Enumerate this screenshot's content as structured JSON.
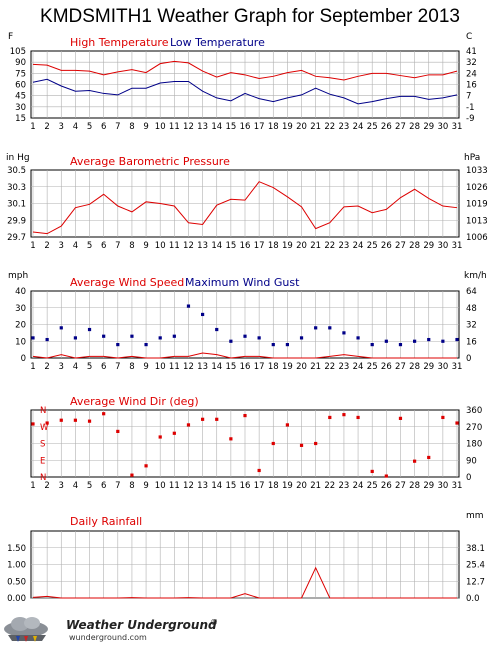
{
  "title": "KMDSMITH1 Weather Graph for September 2013",
  "colors": {
    "red": "#dd0000",
    "blue": "#000088",
    "grid": "#b0b0b0"
  },
  "branding": {
    "name": "Weather Underground",
    "mark": "®",
    "site": "wunderground.com"
  },
  "chart_data": [
    {
      "type": "line",
      "title": "",
      "left_unit": "F",
      "right_unit": "C",
      "x": [
        1,
        2,
        3,
        4,
        5,
        6,
        7,
        8,
        9,
        10,
        11,
        12,
        13,
        14,
        15,
        16,
        17,
        18,
        19,
        20,
        21,
        22,
        23,
        24,
        25,
        26,
        27,
        28,
        29,
        30,
        31
      ],
      "ylim": [
        15,
        105
      ],
      "left_ticks": [
        "105",
        "90",
        "75",
        "60",
        "45",
        "30",
        "15"
      ],
      "right_ticks": [
        "41",
        "32",
        "24",
        "16",
        "7",
        "-1",
        "-9"
      ],
      "series": [
        {
          "name": "High Temperature",
          "color": "#dd0000",
          "values": [
            87,
            86,
            79,
            79,
            78,
            73,
            77,
            80,
            76,
            88,
            91,
            89,
            78,
            70,
            76,
            73,
            68,
            71,
            76,
            79,
            71,
            69,
            66,
            71,
            75,
            75,
            72,
            69,
            73,
            73,
            78
          ]
        },
        {
          "name": "Low Temperature",
          "color": "#000088",
          "values": [
            63,
            67,
            58,
            51,
            52,
            48,
            46,
            55,
            55,
            62,
            64,
            64,
            51,
            42,
            38,
            48,
            41,
            37,
            42,
            46,
            55,
            47,
            42,
            34,
            37,
            41,
            44,
            44,
            40,
            42,
            46
          ]
        }
      ]
    },
    {
      "type": "line",
      "title": "Average Barometric Pressure",
      "left_unit": "in Hg",
      "right_unit": "hPa",
      "x": [
        1,
        2,
        3,
        4,
        5,
        6,
        7,
        8,
        9,
        10,
        11,
        12,
        13,
        14,
        15,
        16,
        17,
        18,
        19,
        20,
        21,
        22,
        23,
        24,
        25,
        26,
        27,
        28,
        29,
        30,
        31
      ],
      "ylim": [
        29.7,
        30.5
      ],
      "left_ticks": [
        "30.5",
        "30.3",
        "30.1",
        "29.9",
        "29.7"
      ],
      "right_ticks": [
        "1033",
        "1026",
        "1019",
        "1013",
        "1006"
      ],
      "series": [
        {
          "name": "Average Barometric Pressure",
          "color": "#dd0000",
          "values": [
            29.76,
            29.74,
            29.83,
            30.05,
            30.09,
            30.21,
            30.07,
            30.0,
            30.12,
            30.1,
            30.07,
            29.87,
            29.85,
            30.08,
            30.15,
            30.14,
            30.36,
            30.29,
            30.18,
            30.06,
            29.8,
            29.87,
            30.06,
            30.07,
            29.99,
            30.03,
            30.17,
            30.27,
            30.16,
            30.07,
            30.05
          ]
        }
      ]
    },
    {
      "type": "scatter",
      "title": "",
      "left_unit": "mph",
      "right_unit": "km/h",
      "x": [
        1,
        2,
        3,
        4,
        5,
        6,
        7,
        8,
        9,
        10,
        11,
        12,
        13,
        14,
        15,
        16,
        17,
        18,
        19,
        20,
        21,
        22,
        23,
        24,
        25,
        26,
        27,
        28,
        29,
        30,
        31
      ],
      "ylim": [
        0,
        40
      ],
      "left_ticks": [
        "40",
        "30",
        "20",
        "10",
        "0"
      ],
      "right_ticks": [
        "64",
        "48",
        "32",
        "16",
        "0"
      ],
      "series": [
        {
          "name": "Average Wind Speed",
          "color": "#dd0000",
          "style": "line",
          "values": [
            1,
            0,
            2,
            0,
            1,
            1,
            0,
            1,
            0,
            0,
            1,
            1,
            3,
            2,
            0,
            1,
            1,
            0,
            0,
            0,
            0,
            1,
            2,
            1,
            0,
            0,
            0,
            0,
            0,
            0,
            0
          ]
        },
        {
          "name": "Maximum Wind Gust",
          "color": "#000088",
          "style": "points",
          "values": [
            12,
            11,
            18,
            12,
            17,
            13,
            8,
            13,
            8,
            12,
            13,
            31,
            26,
            17,
            10,
            13,
            12,
            8,
            8,
            12,
            18,
            18,
            15,
            12,
            8,
            10,
            8,
            10,
            11,
            10,
            11
          ]
        }
      ]
    },
    {
      "type": "scatter",
      "title": "Average Wind Dir (deg)",
      "right_unit": "",
      "x": [
        1,
        2,
        3,
        4,
        5,
        6,
        7,
        8,
        9,
        10,
        11,
        12,
        13,
        14,
        15,
        16,
        17,
        18,
        19,
        20,
        21,
        22,
        23,
        24,
        25,
        26,
        27,
        28,
        29,
        30,
        31
      ],
      "ylim": [
        0,
        360
      ],
      "compass_ticks": [
        "N",
        "W",
        "S",
        "E",
        "N"
      ],
      "right_ticks": [
        "360",
        "270",
        "180",
        "90",
        "0"
      ],
      "series": [
        {
          "name": "Average Wind Dir (deg)",
          "color": "#dd0000",
          "values": [
            285,
            290,
            305,
            305,
            300,
            340,
            245,
            10,
            60,
            215,
            235,
            280,
            310,
            310,
            205,
            330,
            35,
            180,
            280,
            170,
            180,
            320,
            335,
            320,
            30,
            5,
            315,
            85,
            105,
            320,
            290
          ]
        }
      ]
    },
    {
      "type": "line",
      "title": "Daily Rainfall",
      "left_unit": "",
      "right_unit": "mm",
      "x": [
        1,
        2,
        3,
        4,
        5,
        6,
        7,
        8,
        9,
        10,
        11,
        12,
        13,
        14,
        15,
        16,
        17,
        18,
        19,
        20,
        21,
        22,
        23,
        24,
        25,
        26,
        27,
        28,
        29,
        30,
        31
      ],
      "ylim": [
        0,
        2.0
      ],
      "left_ticks": [
        "1.50",
        "1.00",
        "0.50",
        "0.00"
      ],
      "left_tick_values": [
        1.5,
        1.0,
        0.5,
        0.0
      ],
      "right_ticks": [
        "38.1",
        "25.4",
        "12.7",
        "0.0"
      ],
      "series": [
        {
          "name": "Daily Rainfall",
          "color": "#dd0000",
          "values": [
            0.02,
            0.05,
            0,
            0,
            0,
            0,
            0,
            0.01,
            0,
            0,
            0,
            0.01,
            0,
            0,
            0,
            0.13,
            0,
            0,
            0,
            0,
            0.9,
            0,
            0,
            0,
            0,
            0,
            0,
            0,
            0,
            0,
            0
          ]
        }
      ]
    }
  ]
}
